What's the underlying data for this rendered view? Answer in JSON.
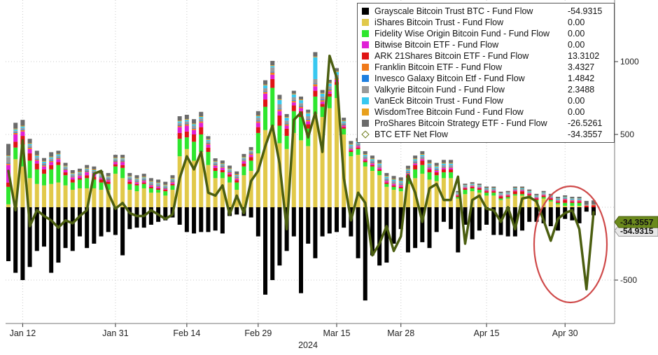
{
  "chart_data": {
    "type": "bar",
    "stacked": true,
    "xlabel": "2024",
    "ylabel": "",
    "ylim": [
      -780,
      1430
    ],
    "yticks": [
      -500,
      500,
      1000
    ],
    "y_axis_side": "right",
    "grid": "dotted",
    "legend_position": "top-right",
    "xtick_labels": [
      "Jan 12",
      "Jan 31",
      "Feb 14",
      "Feb 29",
      "Mar 15",
      "Mar 28",
      "Apr 15",
      "Apr 30"
    ],
    "xtick_indices": [
      2,
      15,
      25,
      35,
      46,
      55,
      67,
      78
    ],
    "tags": [
      {
        "label": "-34.3557",
        "value": -34.3557,
        "color": "#6b8a1c"
      },
      {
        "label": "-54.9315",
        "value": -54.9315,
        "color": "#222222"
      }
    ],
    "series_meta": [
      {
        "name": "Grayscale Bitcoin Trust BTC - Fund Flow",
        "color": "#000000",
        "last": "-54.9315"
      },
      {
        "name": "iShares Bitcoin Trust - Fund Flow",
        "color": "#e1c94a",
        "last": "0.00"
      },
      {
        "name": "Fidelity Wise Origin Bitcoin Fund - Fund Flow",
        "color": "#2ee62e",
        "last": "0.00"
      },
      {
        "name": "Bitwise Bitcoin ETF - Fund Flow",
        "color": "#e020d6",
        "last": "0.00"
      },
      {
        "name": "ARK 21Shares Bitcoin ETF - Fund Flow",
        "color": "#e01414",
        "last": "13.3102"
      },
      {
        "name": "Franklin Bitcoin ETF - Fund Flow",
        "color": "#f07a1a",
        "last": "3.4327"
      },
      {
        "name": "Invesco Galaxy Bitcoin Etf - Fund Flow",
        "color": "#1e7fe0",
        "last": "1.4842"
      },
      {
        "name": "Valkyrie Bitcoin Fund - Fund Flow",
        "color": "#9a9a9a",
        "last": "2.3488"
      },
      {
        "name": "VanEck Bitcoin Trust - Fund Flow",
        "color": "#38c8f0",
        "last": "0.00"
      },
      {
        "name": "WisdomTree Bitcoin Fund - Fund Flow",
        "color": "#e8a01c",
        "last": "0.00"
      },
      {
        "name": "ProShares Bitcoin Strategy ETF - Fund Flow",
        "color": "#6b6b6b",
        "last": "-26.5261"
      },
      {
        "name": "BTC ETF Net Flow",
        "color": "#4b5e10",
        "last": "-34.3557",
        "type": "line"
      }
    ],
    "gbtc": [
      -370,
      -450,
      -500,
      -410,
      -300,
      -270,
      -450,
      -380,
      -280,
      -300,
      -200,
      -280,
      -250,
      -200,
      -170,
      -190,
      -330,
      -150,
      -140,
      -140,
      -120,
      -100,
      -90,
      -70,
      -120,
      -170,
      -180,
      -170,
      -170,
      -160,
      -180,
      -60,
      -50,
      -60,
      -70,
      -200,
      -600,
      -500,
      -400,
      -300,
      -200,
      -590,
      -250,
      -350,
      -200,
      -180,
      -170,
      -140,
      -200,
      -350,
      -640,
      -330,
      -400,
      -380,
      -250,
      -150,
      -310,
      -280,
      -240,
      -280,
      -170,
      -100,
      -150,
      -310,
      -120,
      -220,
      -160,
      -120,
      -190,
      -190,
      -200,
      -200,
      -160,
      -100,
      -100,
      -110,
      -130,
      -160,
      -80,
      -90,
      -110,
      -30,
      -55
    ],
    "ibit": [
      20,
      330,
      280,
      200,
      160,
      150,
      160,
      170,
      150,
      120,
      130,
      130,
      130,
      120,
      120,
      230,
      200,
      120,
      110,
      130,
      100,
      100,
      80,
      120,
      350,
      400,
      320,
      380,
      290,
      200,
      200,
      170,
      120,
      220,
      250,
      370,
      530,
      560,
      440,
      400,
      510,
      460,
      420,
      640,
      620,
      680,
      750,
      500,
      350,
      360,
      280,
      250,
      220,
      140,
      120,
      110,
      160,
      200,
      230,
      190,
      180,
      200,
      200,
      60,
      90,
      110,
      100,
      80,
      80,
      50,
      60,
      80,
      80,
      60,
      40,
      60,
      40,
      20,
      10,
      10,
      10,
      0,
      0
    ],
    "fbtc": [
      120,
      80,
      150,
      120,
      100,
      80,
      100,
      120,
      70,
      50,
      60,
      70,
      60,
      50,
      40,
      50,
      70,
      40,
      40,
      30,
      30,
      20,
      30,
      30,
      120,
      80,
      130,
      120,
      90,
      50,
      40,
      40,
      50,
      60,
      70,
      140,
      160,
      260,
      120,
      90,
      150,
      160,
      120,
      120,
      70,
      80,
      90,
      40,
      30,
      40,
      30,
      30,
      30,
      20,
      20,
      20,
      40,
      60,
      60,
      50,
      40,
      40,
      40,
      10,
      30,
      20,
      20,
      20,
      20,
      10,
      10,
      10,
      10,
      20,
      10,
      10,
      10,
      10,
      20,
      20,
      20,
      0,
      0
    ],
    "arkb": [
      30,
      40,
      60,
      50,
      40,
      30,
      30,
      20,
      20,
      20,
      10,
      20,
      20,
      20,
      15,
      15,
      20,
      15,
      10,
      10,
      10,
      10,
      10,
      10,
      40,
      40,
      50,
      50,
      30,
      20,
      15,
      15,
      15,
      20,
      25,
      40,
      50,
      60,
      70,
      50,
      40,
      40,
      30,
      40,
      20,
      20,
      20,
      10,
      10,
      10,
      10,
      10,
      10,
      10,
      10,
      10,
      20,
      30,
      30,
      20,
      20,
      20,
      20,
      10,
      10,
      10,
      10,
      10,
      10,
      15,
      10,
      20,
      20,
      10,
      10,
      10,
      10,
      10,
      20,
      10,
      10,
      10,
      13.3
    ],
    "bitb": [
      120,
      50,
      30,
      30,
      20,
      20,
      20,
      20,
      15,
      15,
      15,
      20,
      20,
      10,
      10,
      15,
      20,
      10,
      10,
      10,
      10,
      10,
      5,
      10,
      40,
      40,
      30,
      30,
      20,
      15,
      15,
      10,
      10,
      15,
      15,
      30,
      40,
      30,
      30,
      20,
      20,
      20,
      20,
      30,
      15,
      15,
      15,
      10,
      10,
      10,
      10,
      10,
      10,
      10,
      10,
      10,
      10,
      10,
      10,
      10,
      10,
      10,
      10,
      5,
      5,
      5,
      5,
      5,
      5,
      5,
      5,
      5,
      5,
      5,
      5,
      5,
      5,
      5,
      5,
      5,
      5,
      0,
      0
    ],
    "ezbc": [
      10,
      10,
      10,
      10,
      8,
      8,
      8,
      8,
      5,
      5,
      5,
      5,
      5,
      5,
      5,
      5,
      5,
      5,
      5,
      5,
      5,
      5,
      5,
      5,
      10,
      10,
      10,
      10,
      8,
      6,
      6,
      6,
      6,
      6,
      8,
      10,
      12,
      15,
      12,
      10,
      10,
      10,
      10,
      15,
      10,
      10,
      10,
      5,
      5,
      5,
      5,
      5,
      5,
      5,
      5,
      5,
      5,
      5,
      5,
      5,
      5,
      5,
      5,
      3,
      3,
      3,
      3,
      3,
      3,
      3,
      3,
      3,
      3,
      3,
      3,
      3,
      3,
      3,
      3,
      3,
      3,
      3.4,
      3.4
    ],
    "btco": [
      5,
      5,
      5,
      5,
      5,
      5,
      5,
      5,
      5,
      5,
      5,
      5,
      5,
      5,
      5,
      5,
      5,
      5,
      5,
      5,
      5,
      5,
      5,
      5,
      5,
      5,
      5,
      5,
      5,
      5,
      5,
      5,
      5,
      5,
      5,
      5,
      5,
      5,
      5,
      5,
      5,
      5,
      5,
      5,
      5,
      5,
      5,
      5,
      5,
      5,
      5,
      5,
      5,
      5,
      5,
      5,
      5,
      5,
      5,
      5,
      5,
      5,
      5,
      2,
      2,
      2,
      2,
      2,
      2,
      2,
      2,
      2,
      2,
      2,
      2,
      2,
      2,
      2,
      2,
      2,
      2,
      1.5,
      1.5
    ],
    "brrr": [
      40,
      10,
      10,
      10,
      10,
      10,
      10,
      10,
      10,
      10,
      10,
      10,
      10,
      10,
      10,
      10,
      10,
      10,
      10,
      10,
      10,
      10,
      10,
      10,
      15,
      15,
      15,
      15,
      10,
      10,
      10,
      10,
      10,
      10,
      10,
      20,
      20,
      30,
      30,
      20,
      20,
      20,
      20,
      30,
      20,
      20,
      20,
      10,
      10,
      10,
      10,
      10,
      10,
      10,
      10,
      10,
      10,
      10,
      10,
      10,
      10,
      10,
      10,
      5,
      5,
      5,
      5,
      5,
      5,
      5,
      5,
      5,
      5,
      5,
      5,
      5,
      5,
      5,
      5,
      5,
      5,
      2.3,
      2.3
    ],
    "hodl": [
      5,
      10,
      10,
      10,
      10,
      10,
      10,
      10,
      5,
      5,
      5,
      5,
      5,
      5,
      5,
      5,
      5,
      5,
      5,
      5,
      5,
      5,
      5,
      5,
      10,
      10,
      10,
      10,
      10,
      5,
      5,
      5,
      5,
      5,
      5,
      10,
      20,
      10,
      30,
      20,
      20,
      20,
      20,
      150,
      20,
      20,
      20,
      10,
      10,
      10,
      10,
      10,
      10,
      10,
      10,
      10,
      10,
      10,
      10,
      10,
      10,
      10,
      10,
      5,
      5,
      5,
      5,
      5,
      5,
      5,
      5,
      5,
      5,
      5,
      5,
      5,
      5,
      5,
      5,
      5,
      5,
      0,
      0
    ],
    "btcw": [
      5,
      5,
      5,
      5,
      5,
      5,
      5,
      5,
      5,
      5,
      5,
      5,
      5,
      5,
      5,
      5,
      5,
      5,
      5,
      5,
      5,
      5,
      5,
      5,
      5,
      5,
      5,
      5,
      5,
      5,
      5,
      5,
      5,
      5,
      5,
      5,
      5,
      5,
      5,
      5,
      5,
      5,
      5,
      5,
      5,
      5,
      5,
      5,
      5,
      5,
      5,
      5,
      5,
      5,
      5,
      5,
      5,
      5,
      5,
      5,
      5,
      5,
      5,
      2,
      2,
      2,
      2,
      2,
      2,
      2,
      2,
      2,
      2,
      2,
      2,
      2,
      2,
      2,
      2,
      2,
      2,
      0,
      0
    ],
    "bito": [
      -80,
      -40,
      -40,
      -30,
      -30,
      -20,
      -30,
      -20,
      -20,
      -20,
      -20,
      -20,
      -20,
      -20,
      -20,
      -20,
      -20,
      -20,
      -20,
      -20,
      -20,
      -20,
      -20,
      -20,
      -30,
      -30,
      -30,
      -30,
      -20,
      -20,
      -20,
      -20,
      -20,
      -20,
      -20,
      -30,
      -30,
      -30,
      -30,
      -20,
      -20,
      -20,
      -20,
      -30,
      -20,
      -20,
      -20,
      -20,
      -20,
      -20,
      -20,
      -20,
      -20,
      -20,
      -20,
      -20,
      -20,
      -20,
      -20,
      -20,
      -20,
      -20,
      -20,
      -10,
      -10,
      -10,
      -10,
      -10,
      -10,
      -10,
      -10,
      -10,
      -10,
      -10,
      -10,
      -10,
      -10,
      -10,
      -10,
      -10,
      -10,
      -26.5,
      -26.5
    ],
    "net": [
      250,
      -20,
      460,
      -130,
      -20,
      -60,
      -90,
      -140,
      -90,
      -110,
      -60,
      -20,
      230,
      250,
      100,
      -10,
      30,
      -40,
      -60,
      -60,
      -20,
      -50,
      -80,
      -50,
      200,
      350,
      260,
      380,
      100,
      80,
      150,
      -50,
      80,
      -40,
      180,
      250,
      420,
      560,
      300,
      -150,
      600,
      650,
      480,
      650,
      380,
      1040,
      890,
      200,
      -90,
      100,
      30,
      -330,
      -250,
      -130,
      -300,
      -200,
      220,
      100,
      -100,
      130,
      160,
      50,
      50,
      210,
      -250,
      50,
      80,
      -10,
      -20,
      -100,
      0,
      -150,
      60,
      70,
      40,
      -90,
      -230,
      -80,
      -40,
      -20,
      -150,
      -563,
      -34.36
    ]
  }
}
